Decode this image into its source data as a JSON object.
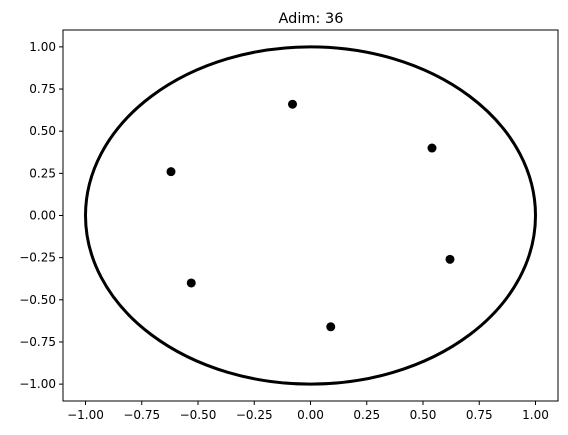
{
  "chart_data": {
    "type": "scatter",
    "title": "Adim: 36",
    "xlabel": "",
    "ylabel": "",
    "xlim": [
      -1.1,
      1.1
    ],
    "ylim": [
      -1.1,
      1.1
    ],
    "grid": false,
    "x_ticks": [
      "−1.00",
      "−0.75",
      "−0.50",
      "−0.25",
      "0.00",
      "0.25",
      "0.50",
      "0.75",
      "1.00"
    ],
    "y_ticks": [
      "−1.00",
      "−0.75",
      "−0.50",
      "−0.25",
      "0.00",
      "0.25",
      "0.50",
      "0.75",
      "1.00"
    ],
    "x_tick_values": [
      -1.0,
      -0.75,
      -0.5,
      -0.25,
      0.0,
      0.25,
      0.5,
      0.75,
      1.0
    ],
    "y_tick_values": [
      -1.0,
      -0.75,
      -0.5,
      -0.25,
      0.0,
      0.25,
      0.5,
      0.75,
      1.0
    ],
    "circle": {
      "center": [
        0,
        0
      ],
      "radius": 1.0,
      "color": "#000000"
    },
    "points": [
      {
        "x": -0.08,
        "y": 0.66
      },
      {
        "x": 0.54,
        "y": 0.4
      },
      {
        "x": -0.62,
        "y": 0.26
      },
      {
        "x": 0.62,
        "y": -0.26
      },
      {
        "x": -0.53,
        "y": -0.4
      },
      {
        "x": 0.09,
        "y": -0.66
      }
    ],
    "point_color": "#000000"
  }
}
